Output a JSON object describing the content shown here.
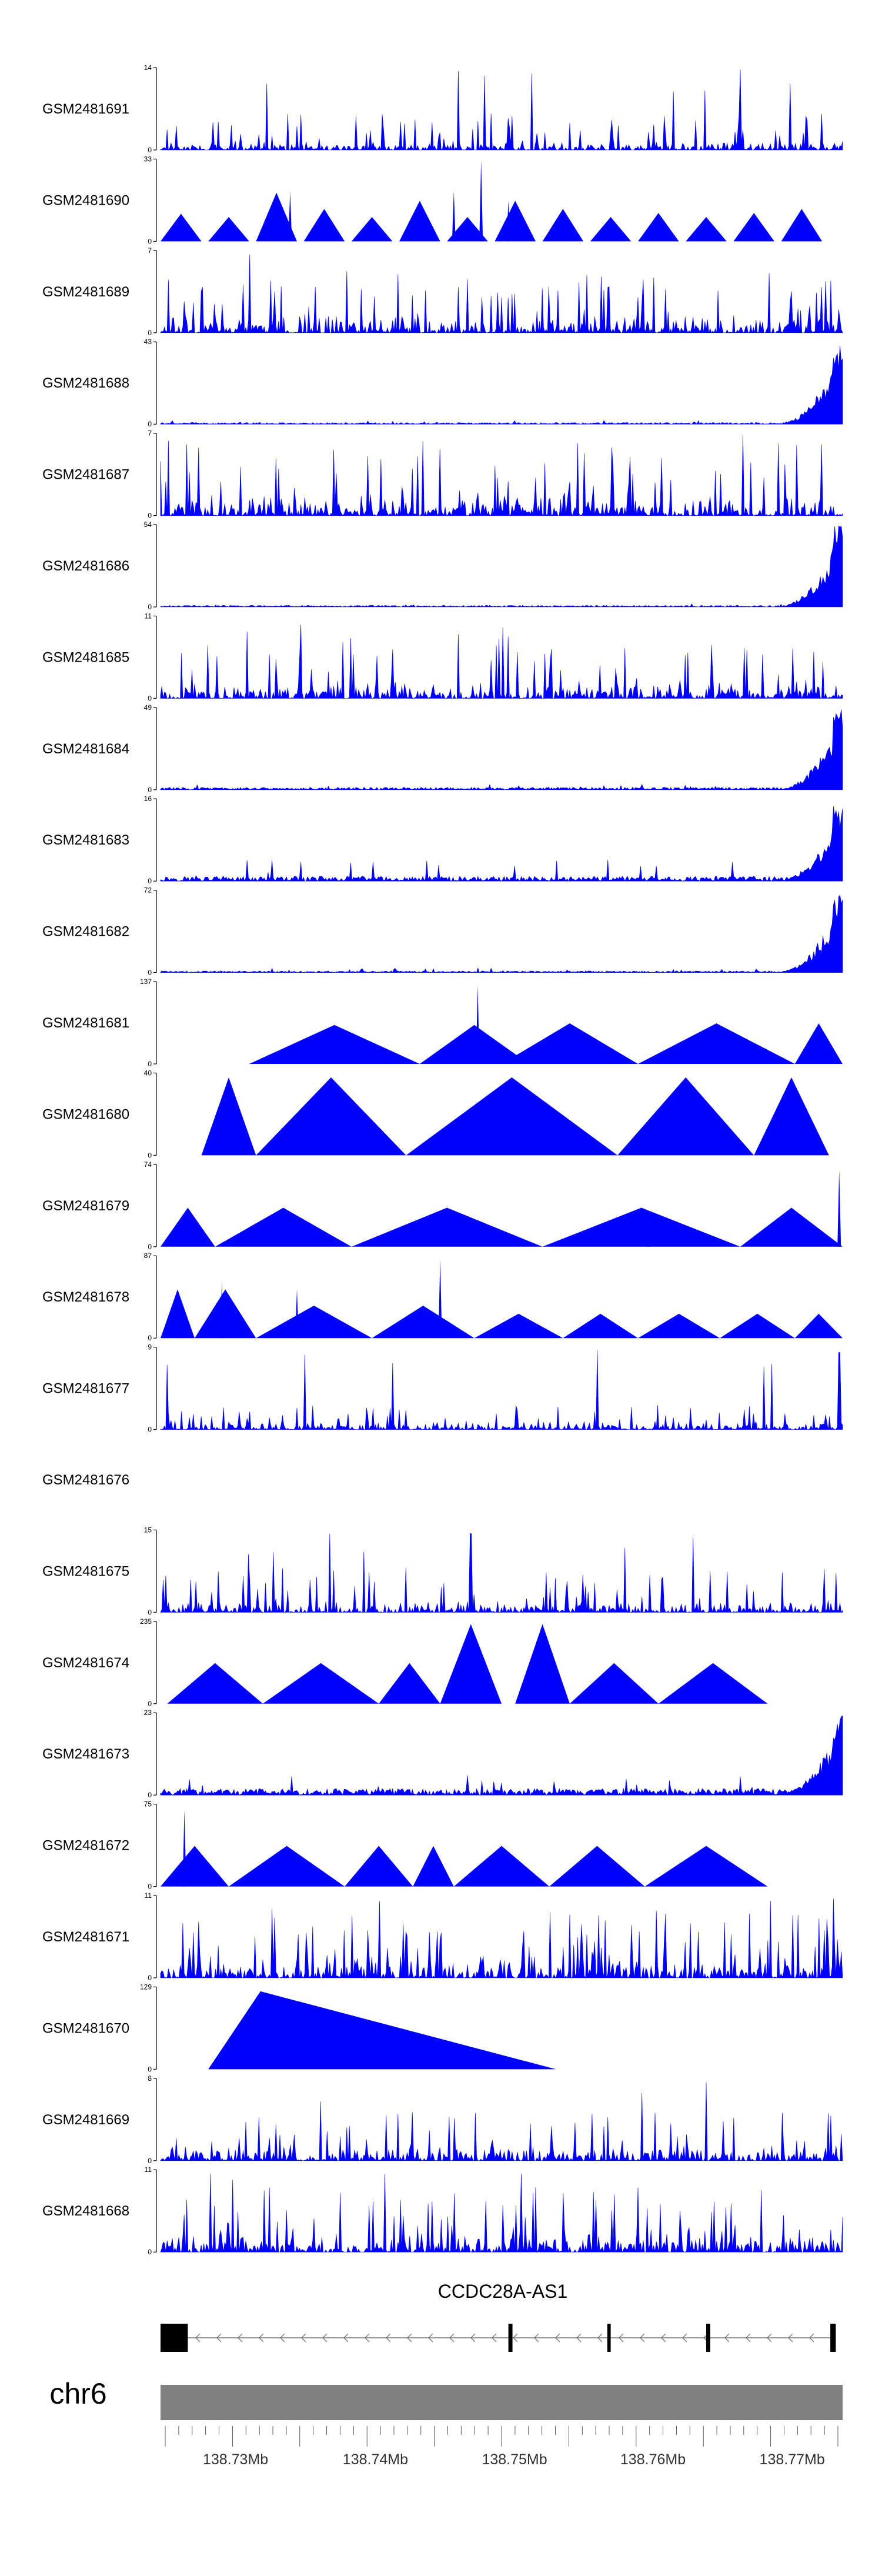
{
  "chart_data": {
    "type": "area",
    "color": "#0000ff",
    "x_region": [
      138.723,
      138.772
    ],
    "x_unit": "Mb",
    "tracks": [
      {
        "name": "GSM2481691",
        "ymax": 14,
        "ymin": 0,
        "seed": 11,
        "shape": "dense",
        "base": 0.12,
        "peak": 0.45
      },
      {
        "name": "GSM2481690",
        "ymax": 33,
        "ymin": 0,
        "seed": 23,
        "shape": "tri",
        "tris": [
          [
            0.0,
            0.06,
            0.34
          ],
          [
            0.07,
            0.13,
            0.3
          ],
          [
            0.14,
            0.2,
            0.6
          ],
          [
            0.21,
            0.27,
            0.4
          ],
          [
            0.28,
            0.34,
            0.3
          ],
          [
            0.35,
            0.41,
            0.5
          ],
          [
            0.42,
            0.48,
            0.3
          ],
          [
            0.49,
            0.55,
            0.5
          ],
          [
            0.56,
            0.62,
            0.4
          ],
          [
            0.63,
            0.69,
            0.3
          ],
          [
            0.7,
            0.76,
            0.35
          ],
          [
            0.77,
            0.83,
            0.3
          ],
          [
            0.84,
            0.9,
            0.35
          ],
          [
            0.91,
            0.97,
            0.4
          ]
        ],
        "spikes": [
          [
            0.47,
            1.0
          ],
          [
            0.19,
            0.62
          ],
          [
            0.43,
            0.62
          ],
          [
            0.51,
            0.5
          ]
        ]
      },
      {
        "name": "GSM2481689",
        "ymax": 7,
        "ymin": 0,
        "seed": 37,
        "shape": "dense",
        "base": 0.25,
        "peak": 0.75
      },
      {
        "name": "GSM2481688",
        "ymax": 43,
        "ymin": 0,
        "seed": 41,
        "shape": "rise",
        "base": 0.02,
        "peak": 0.05
      },
      {
        "name": "GSM2481687",
        "ymax": 7,
        "ymin": 0,
        "seed": 53,
        "shape": "dense",
        "base": 0.3,
        "peak": 0.9
      },
      {
        "name": "GSM2481686",
        "ymax": 54,
        "ymin": 0,
        "seed": 61,
        "shape": "rise",
        "base": 0.02,
        "peak": 0.04
      },
      {
        "name": "GSM2481685",
        "ymax": 11,
        "ymin": 0,
        "seed": 71,
        "shape": "dense",
        "base": 0.22,
        "peak": 0.7
      },
      {
        "name": "GSM2481684",
        "ymax": 49,
        "ymin": 0,
        "seed": 83,
        "shape": "rise",
        "base": 0.03,
        "peak": 0.07
      },
      {
        "name": "GSM2481683",
        "ymax": 16,
        "ymin": 0,
        "seed": 97,
        "shape": "rise",
        "base": 0.06,
        "peak": 0.28
      },
      {
        "name": "GSM2481682",
        "ymax": 72,
        "ymin": 0,
        "seed": 101,
        "shape": "rise",
        "base": 0.02,
        "peak": 0.06
      },
      {
        "name": "GSM2481681",
        "ymax": 137,
        "ymin": 0,
        "shape": "tri",
        "tris": [
          [
            0.13,
            0.38,
            0.48
          ],
          [
            0.38,
            0.54,
            0.48
          ],
          [
            0.5,
            0.7,
            0.5
          ],
          [
            0.7,
            0.93,
            0.5
          ],
          [
            0.93,
            1.0,
            0.5
          ]
        ],
        "spikes": [
          [
            0.465,
            0.97
          ]
        ]
      },
      {
        "name": "GSM2481680",
        "ymax": 40,
        "ymin": 0,
        "shape": "tri",
        "tris": [
          [
            0.06,
            0.14,
            0.96
          ],
          [
            0.14,
            0.36,
            0.96
          ],
          [
            0.36,
            0.67,
            0.96
          ],
          [
            0.67,
            0.87,
            0.96
          ],
          [
            0.87,
            0.98,
            0.96
          ]
        ],
        "spikes": []
      },
      {
        "name": "GSM2481679",
        "ymax": 74,
        "ymin": 0,
        "shape": "tri",
        "tris": [
          [
            0.0,
            0.08,
            0.48
          ],
          [
            0.08,
            0.28,
            0.48
          ],
          [
            0.28,
            0.56,
            0.48
          ],
          [
            0.56,
            0.85,
            0.48
          ],
          [
            0.85,
            1.0,
            0.48
          ]
        ],
        "spikes": [
          [
            0.995,
            0.95
          ],
          [
            0.715,
            0.3
          ]
        ]
      },
      {
        "name": "GSM2481678",
        "ymax": 87,
        "ymin": 0,
        "shape": "tri",
        "tris": [
          [
            0.0,
            0.05,
            0.6
          ],
          [
            0.05,
            0.14,
            0.6
          ],
          [
            0.14,
            0.31,
            0.4
          ],
          [
            0.31,
            0.46,
            0.4
          ],
          [
            0.46,
            0.59,
            0.3
          ],
          [
            0.59,
            0.7,
            0.3
          ],
          [
            0.7,
            0.82,
            0.3
          ],
          [
            0.82,
            0.93,
            0.3
          ],
          [
            0.93,
            1.0,
            0.3
          ]
        ],
        "spikes": [
          [
            0.41,
            0.97
          ],
          [
            0.2,
            0.6
          ],
          [
            0.09,
            0.7
          ],
          [
            0.03,
            0.45
          ]
        ]
      },
      {
        "name": "GSM2481677",
        "ymax": 9,
        "ymin": 0,
        "seed": 131,
        "shape": "dense",
        "base": 0.1,
        "peak": 0.3,
        "spikes": [
          [
            0.995,
            0.95
          ]
        ]
      },
      {
        "name": "GSM2481676",
        "ymax": null,
        "ymin": null,
        "shape": "empty"
      },
      {
        "name": "GSM2481675",
        "ymax": 15,
        "ymin": 0,
        "seed": 151,
        "shape": "dense",
        "base": 0.15,
        "peak": 0.55,
        "spikes": [
          [
            0.455,
            0.97
          ]
        ]
      },
      {
        "name": "GSM2481674",
        "ymax": 235,
        "ymin": 0,
        "shape": "tri",
        "tris": [
          [
            0.01,
            0.15,
            0.5
          ],
          [
            0.15,
            0.32,
            0.5
          ],
          [
            0.32,
            0.41,
            0.5
          ],
          [
            0.41,
            0.5,
            0.98
          ],
          [
            0.52,
            0.6,
            0.98
          ],
          [
            0.6,
            0.73,
            0.5
          ],
          [
            0.73,
            0.89,
            0.5
          ]
        ],
        "spikes": []
      },
      {
        "name": "GSM2481673",
        "ymax": 23,
        "ymin": 0,
        "seed": 173,
        "shape": "rise",
        "base": 0.08,
        "peak": 0.25
      },
      {
        "name": "GSM2481672",
        "ymax": 75,
        "ymin": 0,
        "shape": "tri",
        "tris": [
          [
            0.0,
            0.1,
            0.5
          ],
          [
            0.1,
            0.27,
            0.5
          ],
          [
            0.27,
            0.37,
            0.5
          ],
          [
            0.37,
            0.43,
            0.5
          ],
          [
            0.43,
            0.57,
            0.5
          ],
          [
            0.57,
            0.71,
            0.5
          ],
          [
            0.71,
            0.89,
            0.5
          ]
        ],
        "spikes": [
          [
            0.035,
            0.95
          ]
        ]
      },
      {
        "name": "GSM2481671",
        "ymax": 11,
        "ymin": 0,
        "seed": 191,
        "shape": "dense",
        "base": 0.3,
        "peak": 0.85
      },
      {
        "name": "GSM2481670",
        "ymax": 129,
        "ymin": 0,
        "shape": "tri",
        "tris": [
          [
            0.07,
            0.58,
            0.96
          ]
        ],
        "spikes": [],
        "skew": 0.15
      },
      {
        "name": "GSM2481669",
        "ymax": 8,
        "ymin": 0,
        "seed": 211,
        "shape": "dense",
        "base": 0.2,
        "peak": 0.6
      },
      {
        "name": "GSM2481668",
        "ymax": 11,
        "ymin": 0,
        "seed": 223,
        "shape": "dense",
        "base": 0.28,
        "peak": 0.8
      }
    ],
    "gene": {
      "name": "CCDC28A-AS1",
      "strand": "-",
      "start_frac": 0.0,
      "end_frac": 0.99,
      "exons": [
        [
          0.0,
          0.04
        ],
        [
          0.51,
          0.516
        ],
        [
          0.655,
          0.66
        ],
        [
          0.8,
          0.806
        ],
        [
          0.982,
          0.99
        ]
      ]
    },
    "chromosome": {
      "name": "chr6"
    },
    "x_ticks": [
      {
        "label": "138.73Mb",
        "frac": 0.11
      },
      {
        "label": "138.74Mb",
        "frac": 0.315
      },
      {
        "label": "138.75Mb",
        "frac": 0.519
      },
      {
        "label": "138.76Mb",
        "frac": 0.722
      },
      {
        "label": "138.77Mb",
        "frac": 0.926
      }
    ]
  }
}
